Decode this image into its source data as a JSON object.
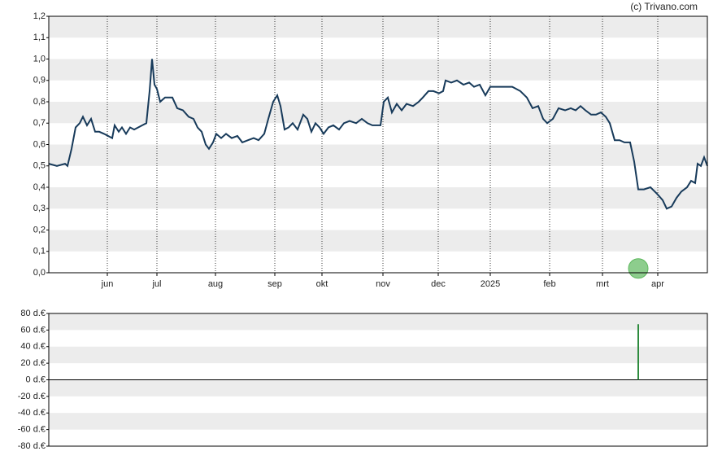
{
  "source": "(c) Trivano.com",
  "chart_data": [
    {
      "type": "line",
      "color": "#173a5a",
      "stripes": true,
      "month_grid": true,
      "xlim": [
        0,
        810
      ],
      "xticks": [
        {
          "value": 72,
          "label": "jun"
        },
        {
          "value": 133,
          "label": "jul"
        },
        {
          "value": 205,
          "label": "aug"
        },
        {
          "value": 278,
          "label": "sep"
        },
        {
          "value": 336,
          "label": "okt"
        },
        {
          "value": 411,
          "label": "nov"
        },
        {
          "value": 479,
          "label": "dec"
        },
        {
          "value": 543,
          "label": "2025"
        },
        {
          "value": 616,
          "label": "feb"
        },
        {
          "value": 681,
          "label": "mrt"
        },
        {
          "value": 749,
          "label": "apr"
        }
      ],
      "ylim": [
        0,
        1.2
      ],
      "yticks": [
        {
          "value": 0,
          "label": "0,0"
        },
        {
          "value": 0.1,
          "label": "0,1"
        },
        {
          "value": 0.2,
          "label": "0,2"
        },
        {
          "value": 0.3,
          "label": "0,3"
        },
        {
          "value": 0.4,
          "label": "0,4"
        },
        {
          "value": 0.5,
          "label": "0,5"
        },
        {
          "value": 0.6,
          "label": "0,6"
        },
        {
          "value": 0.7,
          "label": "0,7"
        },
        {
          "value": 0.8,
          "label": "0,8"
        },
        {
          "value": 0.9,
          "label": "0,9"
        },
        {
          "value": 1.0,
          "label": "1,0"
        },
        {
          "value": 1.1,
          "label": "1,1"
        },
        {
          "value": 1.2,
          "label": "1,2"
        }
      ],
      "x": [
        0,
        10,
        20,
        23,
        28,
        33,
        38,
        42,
        47,
        52,
        57,
        62,
        68,
        73,
        78,
        81,
        86,
        90,
        95,
        100,
        105,
        110,
        115,
        120,
        124,
        127,
        130,
        133,
        137,
        143,
        152,
        158,
        165,
        172,
        178,
        183,
        188,
        193,
        197,
        202,
        206,
        212,
        218,
        225,
        232,
        238,
        245,
        252,
        258,
        265,
        270,
        276,
        281,
        285,
        290,
        295,
        300,
        306,
        313,
        318,
        323,
        328,
        333,
        338,
        344,
        350,
        357,
        363,
        370,
        378,
        385,
        392,
        398,
        408,
        412,
        417,
        422,
        428,
        434,
        440,
        448,
        455,
        460,
        467,
        473,
        480,
        485,
        488,
        495,
        502,
        510,
        517,
        523,
        530,
        537,
        543,
        550,
        560,
        570,
        580,
        588,
        595,
        602,
        608,
        613,
        620,
        627,
        635,
        642,
        648,
        654,
        660,
        667,
        673,
        679,
        685,
        690,
        696,
        702,
        708,
        715,
        720,
        725,
        732,
        740,
        748,
        755,
        760,
        766,
        772,
        778,
        785,
        790,
        795,
        798,
        802,
        806,
        810
      ],
      "values": [
        0.51,
        0.5,
        0.51,
        0.5,
        0.58,
        0.68,
        0.7,
        0.73,
        0.69,
        0.72,
        0.66,
        0.66,
        0.65,
        0.64,
        0.63,
        0.69,
        0.66,
        0.68,
        0.65,
        0.68,
        0.67,
        0.68,
        0.69,
        0.7,
        0.85,
        1.0,
        0.88,
        0.86,
        0.8,
        0.82,
        0.82,
        0.77,
        0.76,
        0.73,
        0.72,
        0.68,
        0.66,
        0.6,
        0.58,
        0.61,
        0.65,
        0.63,
        0.65,
        0.63,
        0.64,
        0.61,
        0.62,
        0.63,
        0.62,
        0.65,
        0.72,
        0.8,
        0.83,
        0.78,
        0.67,
        0.68,
        0.7,
        0.67,
        0.74,
        0.72,
        0.66,
        0.7,
        0.68,
        0.65,
        0.68,
        0.69,
        0.67,
        0.7,
        0.71,
        0.7,
        0.72,
        0.7,
        0.69,
        0.69,
        0.8,
        0.82,
        0.75,
        0.79,
        0.76,
        0.79,
        0.78,
        0.8,
        0.82,
        0.85,
        0.85,
        0.84,
        0.85,
        0.9,
        0.89,
        0.9,
        0.88,
        0.89,
        0.87,
        0.88,
        0.83,
        0.87,
        0.87,
        0.87,
        0.87,
        0.85,
        0.82,
        0.77,
        0.78,
        0.72,
        0.7,
        0.72,
        0.77,
        0.76,
        0.77,
        0.76,
        0.78,
        0.76,
        0.74,
        0.74,
        0.75,
        0.73,
        0.7,
        0.62,
        0.62,
        0.61,
        0.61,
        0.52,
        0.39,
        0.39,
        0.4,
        0.37,
        0.34,
        0.3,
        0.31,
        0.35,
        0.38,
        0.4,
        0.43,
        0.42,
        0.51,
        0.5,
        0.54,
        0.5
      ],
      "markers": [
        {
          "x": 725,
          "y": 0.02,
          "color": "#5cb85c"
        }
      ]
    },
    {
      "type": "bar",
      "color": "#2e8b3e",
      "stripes": true,
      "zero_line": true,
      "xlim": [
        0,
        810
      ],
      "ylim": [
        -80,
        80
      ],
      "yticks": [
        {
          "value": -80,
          "label": "-80 d.€"
        },
        {
          "value": -60,
          "label": "-60 d.€"
        },
        {
          "value": -40,
          "label": "-40 d.€"
        },
        {
          "value": -20,
          "label": "-20 d.€"
        },
        {
          "value": 0,
          "label": "0 d.€"
        },
        {
          "value": 20,
          "label": "20 d.€"
        },
        {
          "value": 40,
          "label": "40 d.€"
        },
        {
          "value": 60,
          "label": "60 d.€"
        },
        {
          "value": 80,
          "label": "80 d.€"
        }
      ],
      "x": [
        725
      ],
      "values": [
        67
      ]
    }
  ]
}
